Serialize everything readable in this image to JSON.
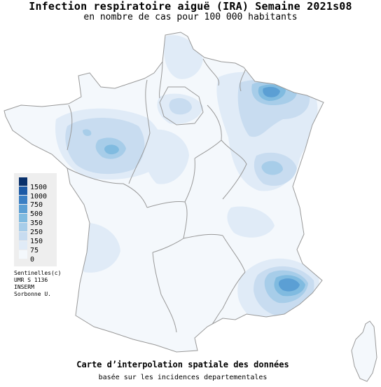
{
  "title": "Infection respiratoire aiguë (IRA) Semaine 2021s08",
  "subtitle": "en nombre de cas pour 100 000 habitants",
  "legend": {
    "items": [
      {
        "label": "1500",
        "color": "#08306b"
      },
      {
        "label": "1000",
        "color": "#1c5aa6"
      },
      {
        "label": "750",
        "color": "#3a7fc4"
      },
      {
        "label": "500",
        "color": "#5b9fd4"
      },
      {
        "label": "350",
        "color": "#80bbe0"
      },
      {
        "label": "250",
        "color": "#a7cde9"
      },
      {
        "label": "150",
        "color": "#c8dcf0"
      },
      {
        "label": "75",
        "color": "#e0ebf7"
      },
      {
        "label": "0",
        "color": "#f4f8fc"
      }
    ]
  },
  "credits": [
    "Sentinelles(c)",
    "UMR S 1136",
    "INSERM",
    "Sorbonne U."
  ],
  "footer": {
    "line1": "Carte d’interpolation spatiale des données",
    "line2": "basée sur les incidences departementales"
  },
  "colors": {
    "land": "#f4f8fc",
    "border": "#999999",
    "level_75": "#e0ebf7",
    "level_150": "#c8dcf0",
    "level_250": "#a7cde9",
    "level_350": "#80bbe0",
    "level_500": "#5b9fd4"
  }
}
